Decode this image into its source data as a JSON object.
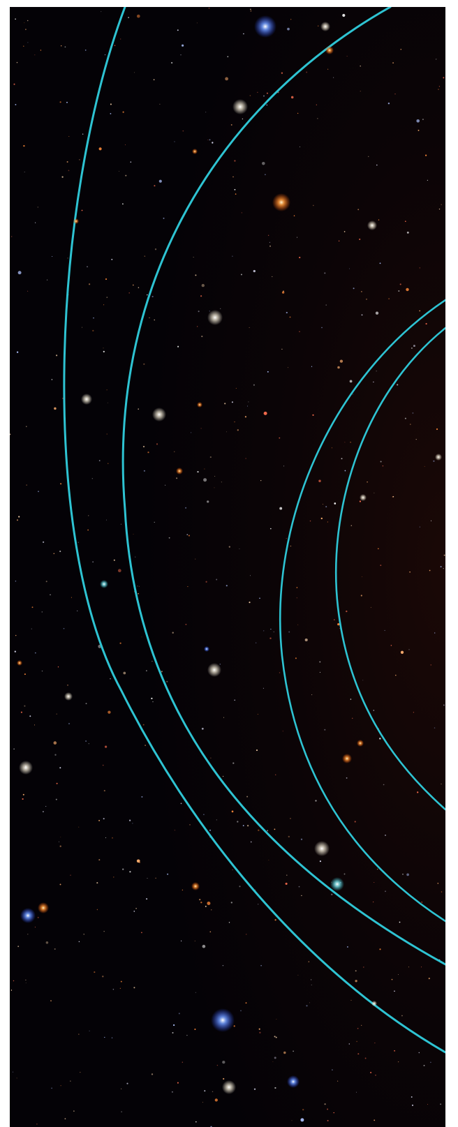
{
  "image": {
    "subject": "star-field-with-orbit-arcs",
    "colors": {
      "frame": "#ffffff",
      "sky": "#050206",
      "orbit_line": "#2ec3d2",
      "star_white": "#ffffff",
      "star_blue": "#6f9bff",
      "star_orange": "#ff9a3a"
    },
    "orbit_count": 4
  }
}
